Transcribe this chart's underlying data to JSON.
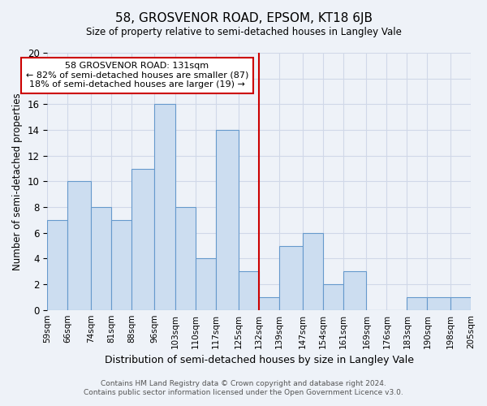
{
  "title": "58, GROSVENOR ROAD, EPSOM, KT18 6JB",
  "subtitle": "Size of property relative to semi-detached houses in Langley Vale",
  "xlabel": "Distribution of semi-detached houses by size in Langley Vale",
  "ylabel": "Number of semi-detached properties",
  "bins": [
    59,
    66,
    74,
    81,
    88,
    96,
    103,
    110,
    117,
    125,
    132,
    139,
    147,
    154,
    161,
    169,
    176,
    183,
    190,
    198,
    205
  ],
  "bin_labels": [
    "59sqm",
    "66sqm",
    "74sqm",
    "81sqm",
    "88sqm",
    "96sqm",
    "103sqm",
    "110sqm",
    "117sqm",
    "125sqm",
    "132sqm",
    "139sqm",
    "147sqm",
    "154sqm",
    "161sqm",
    "169sqm",
    "176sqm",
    "183sqm",
    "190sqm",
    "198sqm",
    "205sqm"
  ],
  "counts": [
    7,
    10,
    8,
    7,
    11,
    16,
    8,
    4,
    14,
    3,
    1,
    5,
    6,
    2,
    3,
    0,
    0,
    1,
    1,
    1
  ],
  "bar_color": "#ccddf0",
  "bar_edge_color": "#6699cc",
  "vline_x": 132,
  "vline_color": "#cc0000",
  "annotation_title": "58 GROSVENOR ROAD: 131sqm",
  "annotation_line1": "← 82% of semi-detached houses are smaller (87)",
  "annotation_line2": "18% of semi-detached houses are larger (19) →",
  "annotation_box_color": "#ffffff",
  "annotation_box_edge": "#cc0000",
  "ylim": [
    0,
    20
  ],
  "yticks": [
    0,
    2,
    4,
    6,
    8,
    10,
    12,
    14,
    16,
    18,
    20
  ],
  "footer1": "Contains HM Land Registry data © Crown copyright and database right 2024.",
  "footer2": "Contains public sector information licensed under the Open Government Licence v3.0.",
  "bg_color": "#eef2f8",
  "plot_bg_color": "#eef2f8",
  "grid_color": "#d0d8e8"
}
